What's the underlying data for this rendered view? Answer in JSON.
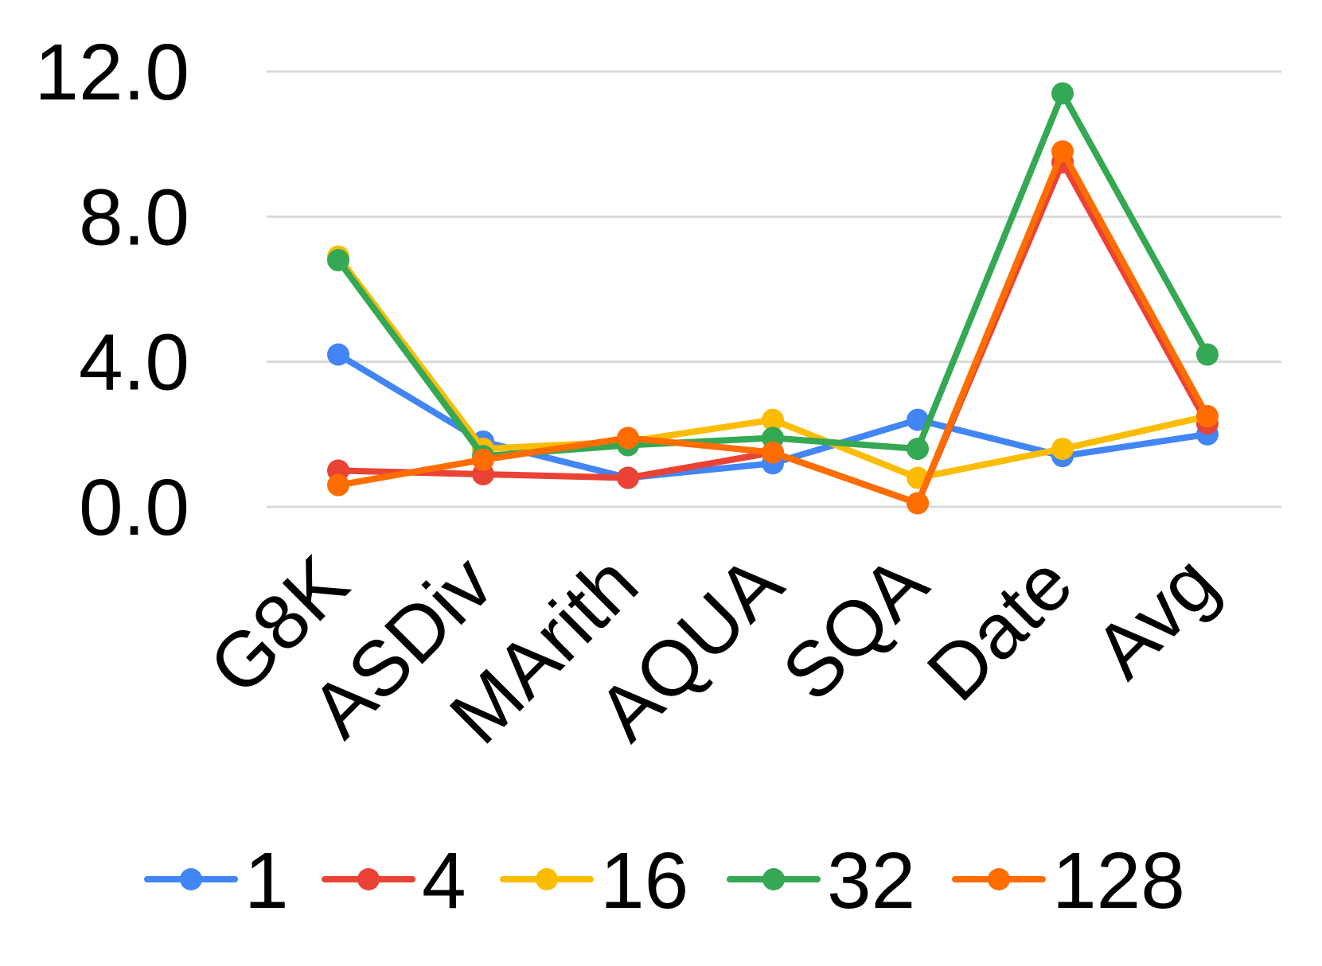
{
  "chart_data": {
    "type": "line",
    "title": "",
    "xlabel": "",
    "ylabel": "",
    "categories": [
      "G8K",
      "ASDiv",
      "MArith",
      "AQUA",
      "SQA",
      "Date",
      "Avg"
    ],
    "y_ticks": [
      "0.0",
      "4.0",
      "8.0",
      "12.0"
    ],
    "y_tick_values": [
      0,
      4,
      8,
      12
    ],
    "ylim": [
      0,
      12
    ],
    "grid": true,
    "legend_position": "bottom",
    "series": [
      {
        "name": "1",
        "color": "#4285F4",
        "values": [
          4.2,
          1.8,
          0.8,
          1.2,
          2.4,
          1.4,
          2.0
        ]
      },
      {
        "name": "4",
        "color": "#EA4335",
        "values": [
          1.0,
          0.9,
          0.8,
          1.5,
          0.1,
          9.5,
          2.3
        ]
      },
      {
        "name": "16",
        "color": "#FBBC04",
        "values": [
          6.9,
          1.6,
          1.8,
          2.4,
          0.8,
          1.6,
          2.5
        ]
      },
      {
        "name": "32",
        "color": "#34A853",
        "values": [
          6.8,
          1.4,
          1.7,
          1.9,
          1.6,
          11.4,
          4.2
        ]
      },
      {
        "name": "128",
        "color": "#FF6D01",
        "values": [
          0.6,
          1.3,
          1.9,
          1.5,
          0.1,
          9.8,
          2.5
        ]
      }
    ]
  }
}
